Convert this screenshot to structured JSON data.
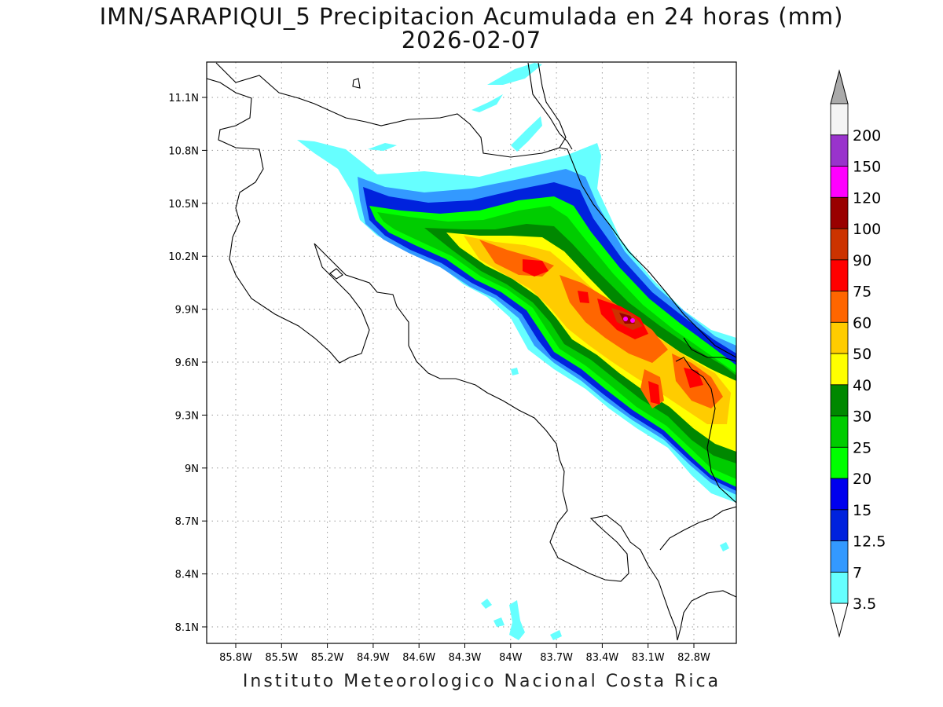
{
  "title": "IMN/SARAPIQUI_5 Precipitacion Acumulada en 24 horas (mm)",
  "date": "2026-02-07",
  "footer": "Instituto Meteorologico Nacional Costa Rica",
  "lat_ticks": [
    "11.1N",
    "10.8N",
    "10.5N",
    "10.2N",
    "9.9N",
    "9.6N",
    "9.3N",
    "9N",
    "8.7N",
    "8.4N",
    "8.1N"
  ],
  "lon_ticks": [
    "85.8W",
    "85.5W",
    "85.2W",
    "84.9W",
    "84.6W",
    "84.3W",
    "84W",
    "83.7W",
    "83.4W",
    "83.1W",
    "82.8W"
  ],
  "colorbar": {
    "labels": [
      "3.5",
      "7",
      "12.5",
      "15",
      "20",
      "25",
      "30",
      "40",
      "50",
      "60",
      "75",
      "90",
      "100",
      "120",
      "150",
      "200"
    ],
    "colors": [
      "#66ffff",
      "#3399ff",
      "#0022dd",
      "#0000ee",
      "#00ff00",
      "#00cc00",
      "#008800",
      "#ffff00",
      "#ffcc00",
      "#ff6600",
      "#ff0000",
      "#cc3300",
      "#990000",
      "#ff00ff",
      "#9933cc",
      "#f4f4f4"
    ],
    "over_color": "#aaaaaa",
    "under_color": "#ffffff"
  }
}
